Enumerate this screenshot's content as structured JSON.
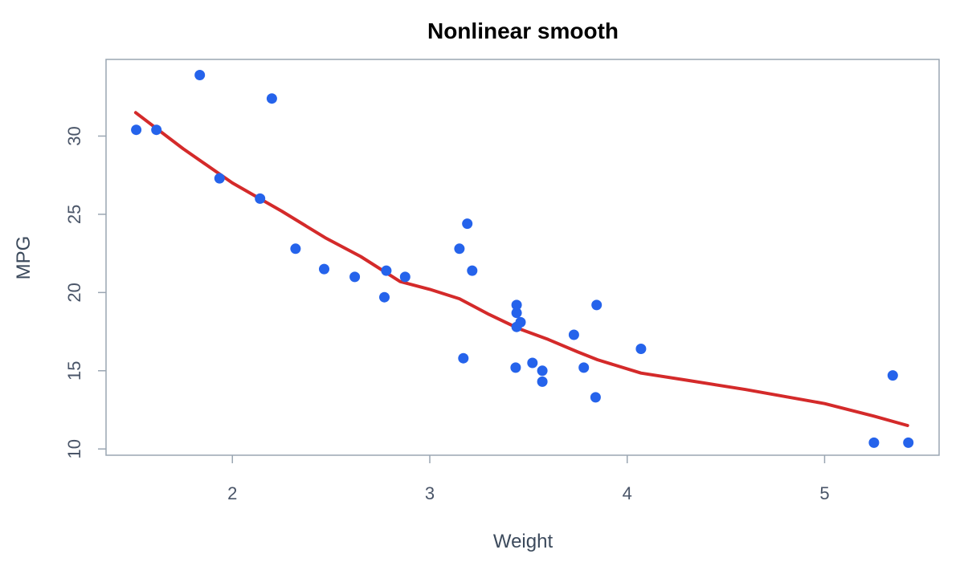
{
  "chart_data": {
    "type": "scatter",
    "title": "Nonlinear smooth",
    "xlabel": "Weight",
    "ylabel": "MPG",
    "xlim": [
      1.36,
      5.58
    ],
    "ylim": [
      9.6,
      34.9
    ],
    "xticks": [
      2,
      3,
      4,
      5
    ],
    "yticks": [
      10,
      15,
      20,
      25,
      30
    ],
    "grid": false,
    "colors": {
      "points": "#2563eb",
      "smooth": "#d42a2a",
      "frame": "#9aa6b2"
    },
    "series": [
      {
        "type": "scatter",
        "points": [
          [
            1.513,
            30.4
          ],
          [
            1.615,
            30.4
          ],
          [
            1.835,
            33.9
          ],
          [
            1.935,
            27.3
          ],
          [
            2.14,
            26.0
          ],
          [
            2.2,
            32.4
          ],
          [
            2.32,
            22.8
          ],
          [
            2.465,
            21.5
          ],
          [
            2.62,
            21.0
          ],
          [
            2.77,
            19.7
          ],
          [
            2.78,
            21.4
          ],
          [
            2.875,
            21.0
          ],
          [
            3.15,
            22.8
          ],
          [
            3.17,
            15.8
          ],
          [
            3.19,
            24.4
          ],
          [
            3.215,
            21.4
          ],
          [
            3.435,
            15.2
          ],
          [
            3.44,
            17.8
          ],
          [
            3.44,
            18.7
          ],
          [
            3.44,
            19.2
          ],
          [
            3.46,
            18.1
          ],
          [
            3.52,
            15.5
          ],
          [
            3.57,
            15.0
          ],
          [
            3.57,
            14.3
          ],
          [
            3.73,
            17.3
          ],
          [
            3.78,
            15.2
          ],
          [
            3.84,
            13.3
          ],
          [
            3.845,
            19.2
          ],
          [
            4.07,
            16.4
          ],
          [
            5.25,
            10.4
          ],
          [
            5.345,
            14.7
          ],
          [
            5.424,
            10.4
          ]
        ]
      },
      {
        "type": "line",
        "points": [
          [
            1.51,
            31.5
          ],
          [
            1.75,
            29.2
          ],
          [
            2.0,
            27.0
          ],
          [
            2.25,
            25.2
          ],
          [
            2.47,
            23.5
          ],
          [
            2.65,
            22.3
          ],
          [
            2.85,
            20.7
          ],
          [
            3.0,
            20.2
          ],
          [
            3.15,
            19.6
          ],
          [
            3.3,
            18.6
          ],
          [
            3.45,
            17.7
          ],
          [
            3.6,
            17.0
          ],
          [
            3.75,
            16.2
          ],
          [
            3.85,
            15.7
          ],
          [
            4.07,
            14.85
          ],
          [
            4.3,
            14.4
          ],
          [
            4.6,
            13.8
          ],
          [
            5.0,
            12.9
          ],
          [
            5.25,
            12.1
          ],
          [
            5.42,
            11.5
          ]
        ]
      }
    ]
  }
}
